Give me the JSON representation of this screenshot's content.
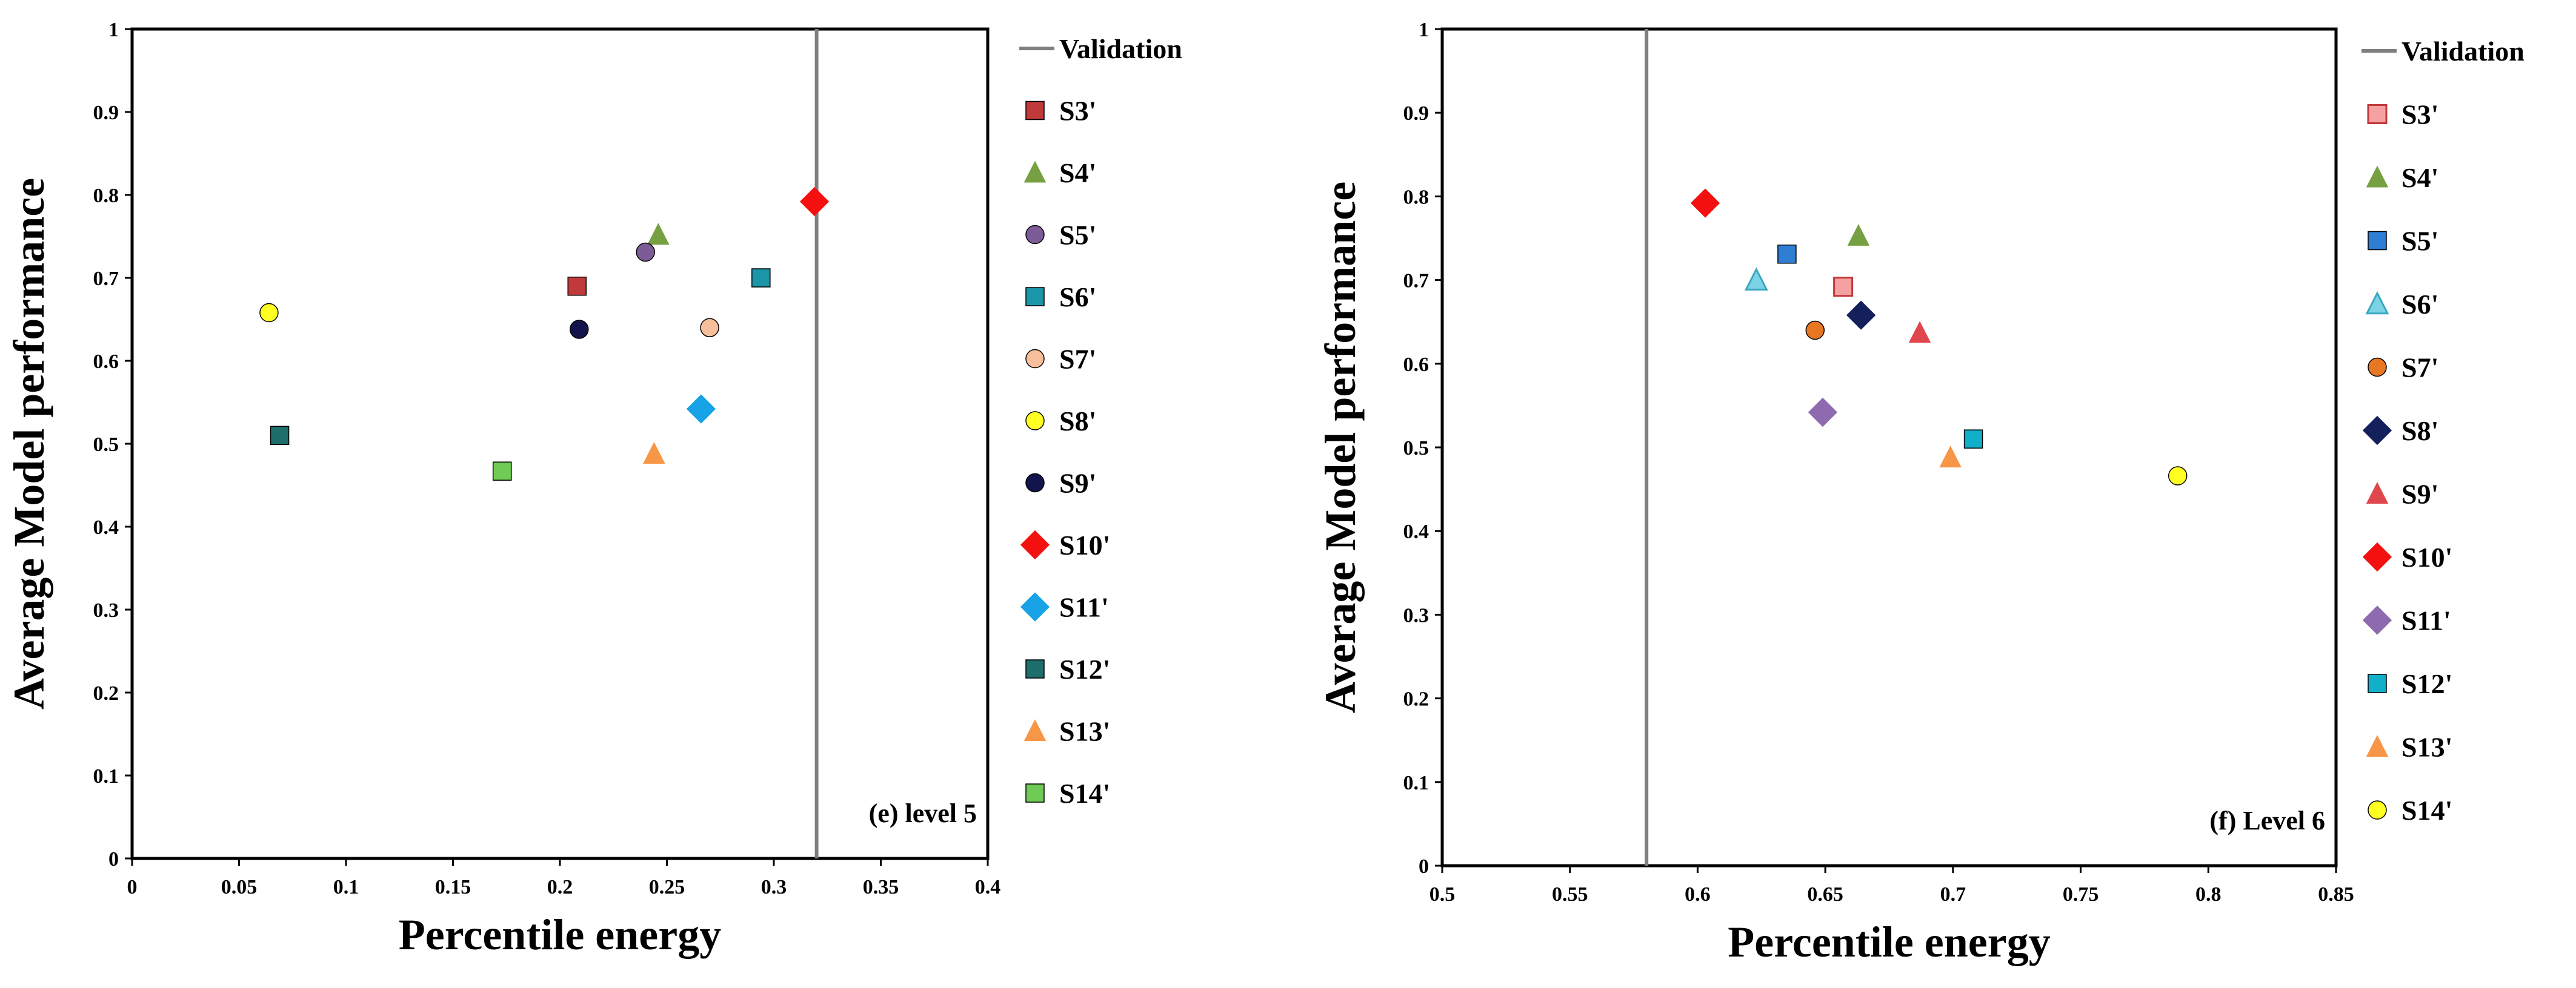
{
  "chart_data": [
    {
      "type": "scatter",
      "panel_label": "(e) level 5",
      "xlabel": "Percentile energy",
      "ylabel": "Average Model performance",
      "xlim": [
        0,
        0.4
      ],
      "ylim": [
        0,
        1
      ],
      "x_ticks": [
        "0",
        "0.05",
        "0.1",
        "0.15",
        "0.2",
        "0.25",
        "0.3",
        "0.35",
        "0.4"
      ],
      "y_ticks": [
        "0",
        "0.1",
        "0.2",
        "0.3",
        "0.4",
        "0.5",
        "0.6",
        "0.7",
        "0.8",
        "0.9",
        "1"
      ],
      "validation": {
        "label": "Validation",
        "x": 0.32,
        "color": "#7f7f7f"
      },
      "series": [
        {
          "name": "S3'",
          "marker": "square",
          "color": "#C0393B",
          "x": 0.208,
          "y": 0.69
        },
        {
          "name": "S4'",
          "marker": "triangle",
          "color": "#77A043",
          "x": 0.246,
          "y": 0.752
        },
        {
          "name": "S5'",
          "marker": "circle",
          "color": "#7D5B96",
          "x": 0.24,
          "y": 0.731
        },
        {
          "name": "S6'",
          "marker": "square",
          "color": "#1A96A8",
          "x": 0.294,
          "y": 0.7
        },
        {
          "name": "S7'",
          "marker": "circle",
          "color": "#F9BE9C",
          "x": 0.27,
          "y": 0.64
        },
        {
          "name": "S8'",
          "marker": "circle",
          "color": "#FFFF22",
          "x": 0.064,
          "y": 0.658
        },
        {
          "name": "S9'",
          "marker": "circle",
          "color": "#14144D",
          "x": 0.209,
          "y": 0.638
        },
        {
          "name": "S10'",
          "marker": "diamond",
          "color": "#F51010",
          "x": 0.319,
          "y": 0.792
        },
        {
          "name": "S11'",
          "marker": "diamond",
          "color": "#17A3E6",
          "x": 0.266,
          "y": 0.542
        },
        {
          "name": "S12'",
          "marker": "square",
          "color": "#1E6F6B",
          "x": 0.069,
          "y": 0.51
        },
        {
          "name": "S13'",
          "marker": "triangle",
          "color": "#F79646",
          "x": 0.244,
          "y": 0.488
        },
        {
          "name": "S14'",
          "marker": "square",
          "color": "#6FCB55",
          "x": 0.173,
          "y": 0.467
        }
      ]
    },
    {
      "type": "scatter",
      "panel_label": "(f) Level 6",
      "xlabel": "Percentile energy",
      "ylabel": "Average Model performance",
      "xlim": [
        0.5,
        0.85
      ],
      "ylim": [
        0,
        1
      ],
      "x_ticks": [
        "0.5",
        "0.55",
        "0.6",
        "0.65",
        "0.7",
        "0.75",
        "0.8",
        "0.85"
      ],
      "y_ticks": [
        "0",
        "0.1",
        "0.2",
        "0.3",
        "0.4",
        "0.5",
        "0.6",
        "0.7",
        "0.8",
        "0.9",
        "1"
      ],
      "validation": {
        "label": "Validation",
        "x": 0.58,
        "color": "#7f7f7f"
      },
      "series": [
        {
          "name": "S3'",
          "marker": "square",
          "color": "#F6A1A1",
          "stroke": "#C0393B",
          "x": 0.657,
          "y": 0.692
        },
        {
          "name": "S4'",
          "marker": "triangle",
          "color": "#77A043",
          "x": 0.663,
          "y": 0.753
        },
        {
          "name": "S5'",
          "marker": "square",
          "color": "#2E7ED3",
          "x": 0.635,
          "y": 0.731
        },
        {
          "name": "S6'",
          "marker": "triangle",
          "color": "#7BD4E6",
          "stroke": "#3AA7C0",
          "x": 0.623,
          "y": 0.7
        },
        {
          "name": "S7'",
          "marker": "circle",
          "color": "#E87722",
          "x": 0.646,
          "y": 0.64
        },
        {
          "name": "S8'",
          "marker": "diamond",
          "color": "#13205C",
          "x": 0.664,
          "y": 0.658
        },
        {
          "name": "S9'",
          "marker": "triangle",
          "color": "#E0474C",
          "x": 0.687,
          "y": 0.637
        },
        {
          "name": "S10'",
          "marker": "diamond",
          "color": "#F51010",
          "x": 0.603,
          "y": 0.792
        },
        {
          "name": "S11'",
          "marker": "diamond",
          "color": "#8E6AAE",
          "x": 0.649,
          "y": 0.542
        },
        {
          "name": "S12'",
          "marker": "square",
          "color": "#11AFC9",
          "x": 0.708,
          "y": 0.51
        },
        {
          "name": "S13'",
          "marker": "triangle",
          "color": "#F79646",
          "x": 0.699,
          "y": 0.488
        },
        {
          "name": "S14'",
          "marker": "circle",
          "color": "#FFFF22",
          "x": 0.788,
          "y": 0.466
        }
      ]
    }
  ]
}
